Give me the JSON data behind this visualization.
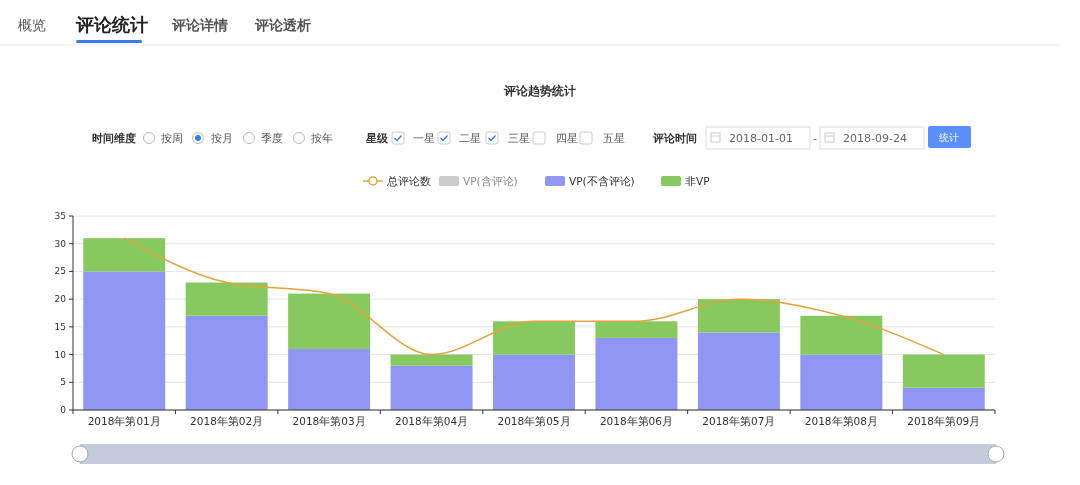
{
  "chart_data": {
    "type": "bar",
    "title": "评论趋势统计",
    "stacked": true,
    "categories": [
      "2018年第01月",
      "2018年第02月",
      "2018年第03月",
      "2018年第04月",
      "2018年第05月",
      "2018年第06月",
      "2018年第07月",
      "2018年第08月",
      "2018年第09月"
    ],
    "series": [
      {
        "name": "总评论数",
        "type": "line",
        "color": "#e6a23c",
        "values": [
          31,
          23,
          21,
          10,
          16,
          16,
          20,
          17,
          10
        ]
      },
      {
        "name": "VP(含评论)",
        "color": "#cccccc",
        "values": [
          null,
          null,
          null,
          null,
          null,
          null,
          null,
          null,
          null
        ]
      },
      {
        "name": "VP(不含评论)",
        "color": "#8f97f2",
        "values": [
          25,
          17,
          11,
          8,
          10,
          13,
          14,
          10,
          4
        ]
      },
      {
        "name": "非VP",
        "color": "#87c95f",
        "values": [
          6,
          6,
          10,
          2,
          6,
          3,
          6,
          7,
          6
        ]
      }
    ],
    "ylim": [
      0,
      35
    ],
    "yticks": [
      0,
      5,
      10,
      15,
      20,
      25,
      30,
      35
    ],
    "grid": "y",
    "legend": "top",
    "annotations": [
      "概览",
      "评论统计",
      "评论详情",
      "评论透析",
      "时间维度",
      "按周",
      "按月",
      "季度",
      "按年",
      "星级",
      "一星",
      "二星",
      "三星",
      "四星",
      "五星",
      "评论时间",
      "2018-01-01",
      "-",
      "2018-09-24",
      "统计"
    ]
  }
}
